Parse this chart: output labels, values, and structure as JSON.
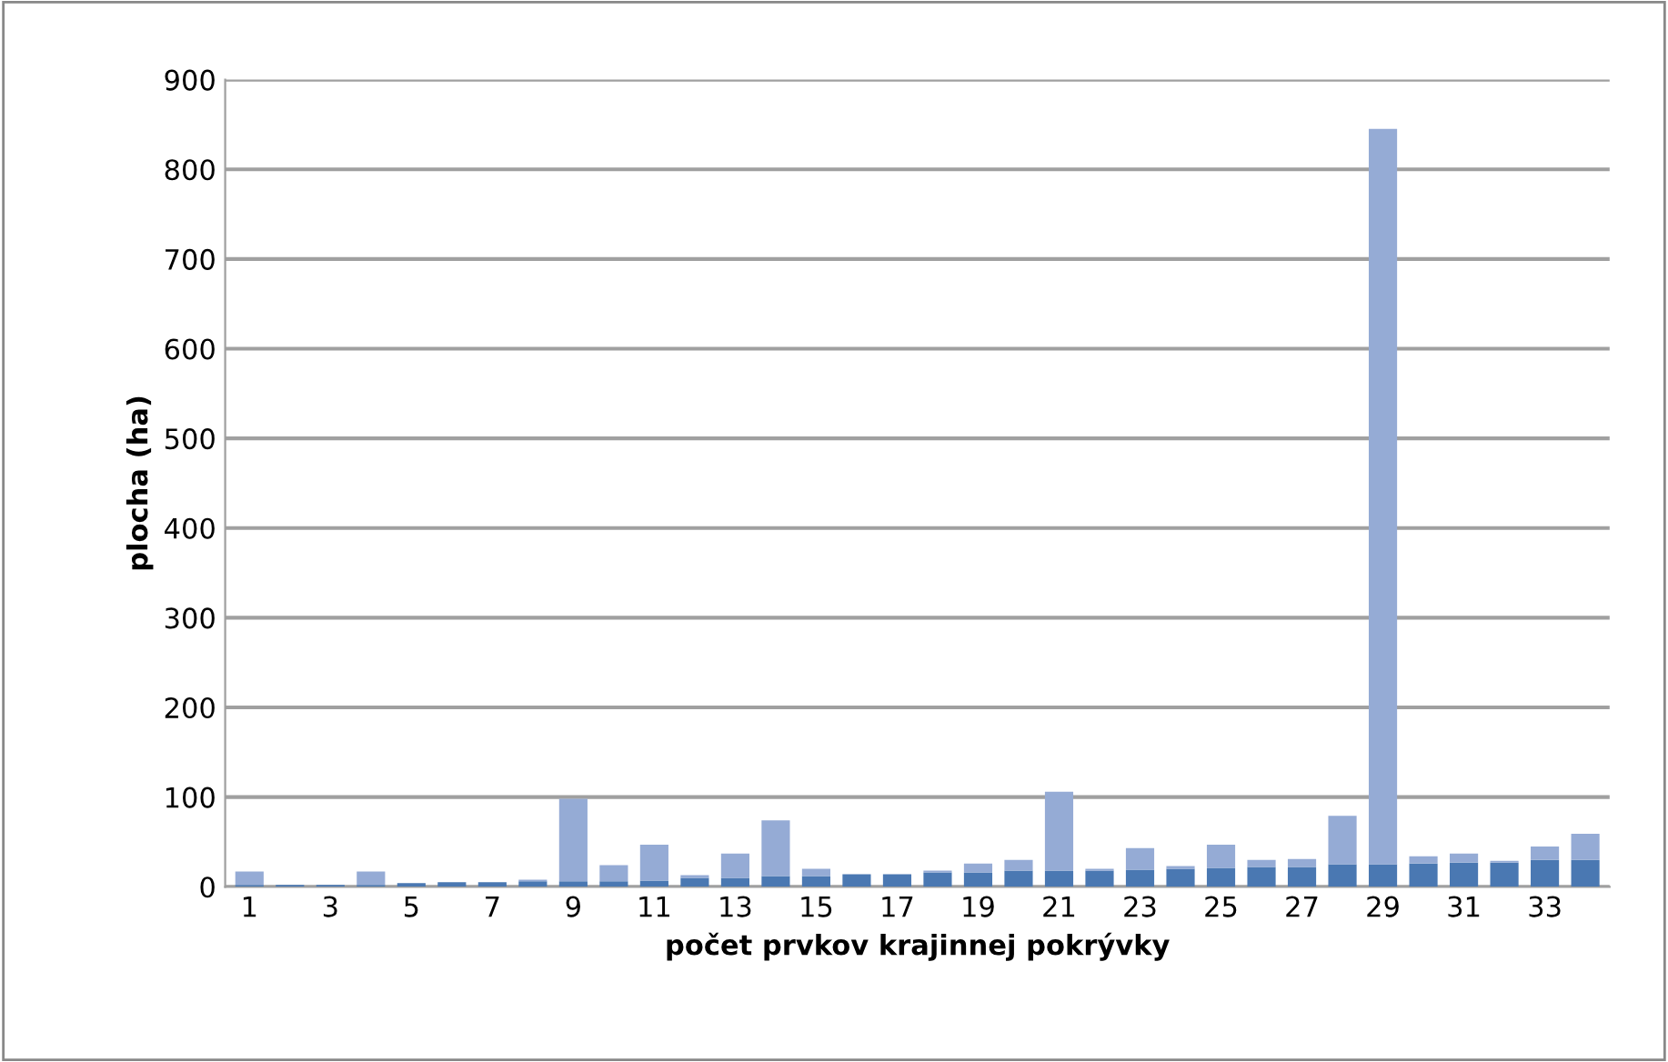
{
  "chart_data": {
    "type": "bar",
    "stacked": true,
    "xlabel": "počet prvkov krajinnej pokrývky",
    "ylabel": "plocha (ha)",
    "categories": [
      "1",
      null,
      "3",
      null,
      "5",
      null,
      "7",
      null,
      "9",
      null,
      "11",
      null,
      "13",
      null,
      "15",
      null,
      "17",
      null,
      "19",
      null,
      "21",
      null,
      "23",
      null,
      "25",
      null,
      "27",
      null,
      "29",
      null,
      "31",
      null,
      "33",
      null
    ],
    "series": [
      {
        "color": "#4a78b2",
        "values": [
          2,
          2,
          2,
          2,
          4,
          5,
          5,
          6,
          6,
          6,
          7,
          10,
          10,
          12,
          12,
          14,
          14,
          16,
          16,
          18,
          18,
          18,
          19,
          20,
          21,
          22,
          22,
          25,
          25,
          26,
          27,
          27,
          30,
          30
        ]
      },
      {
        "color": "#95abd5",
        "values": [
          15,
          0,
          0,
          15,
          0,
          0,
          0,
          2,
          92,
          18,
          40,
          3,
          27,
          62,
          8,
          0,
          0,
          2,
          10,
          12,
          88,
          2,
          24,
          3,
          26,
          8,
          9,
          54,
          820,
          8,
          10,
          2,
          15,
          29
        ]
      }
    ],
    "ylim": [
      0,
      900
    ],
    "yticks": [
      0,
      100,
      200,
      300,
      400,
      500,
      600,
      700,
      800,
      900
    ],
    "grid": "y",
    "legend": false
  }
}
